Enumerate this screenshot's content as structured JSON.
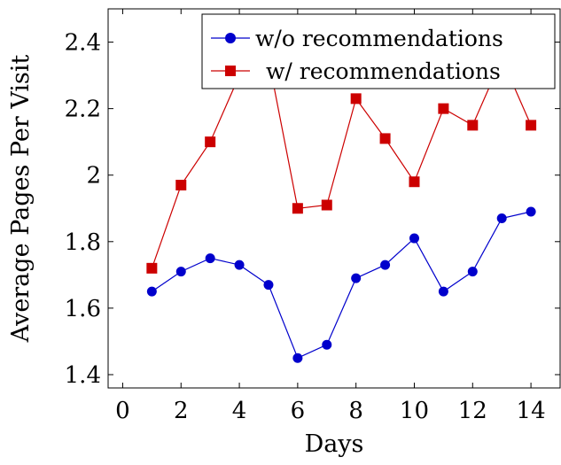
{
  "chart_data": {
    "type": "line",
    "title": "",
    "xlabel": "Days",
    "ylabel": "Average Pages Per Visit",
    "xlim": [
      -0.5,
      15
    ],
    "ylim": [
      1.36,
      2.5
    ],
    "xticks": [
      0,
      2,
      4,
      6,
      8,
      10,
      12,
      14
    ],
    "xtick_labels": [
      "0",
      "2",
      "4",
      "6",
      "8",
      "10",
      "12",
      "14"
    ],
    "yticks": [
      1.4,
      1.6,
      1.8,
      2.0,
      2.2,
      2.4
    ],
    "ytick_labels": [
      "1.4",
      "1.6",
      "1.8",
      "2",
      "2.2",
      "2.4"
    ],
    "grid": false,
    "legend_position": "top-right",
    "x": [
      1,
      2,
      3,
      4,
      5,
      6,
      7,
      8,
      9,
      10,
      11,
      12,
      13,
      14
    ],
    "series": [
      {
        "name": "w/o recommendations",
        "color": "#0000cc",
        "marker": "circle",
        "values": [
          1.65,
          1.71,
          1.75,
          1.73,
          1.67,
          1.45,
          1.49,
          1.69,
          1.73,
          1.81,
          1.65,
          1.71,
          1.87,
          1.89
        ]
      },
      {
        "name": "w/ recommendations",
        "color": "#cc0000",
        "marker": "square",
        "values": [
          1.72,
          1.97,
          2.1,
          2.3,
          2.35,
          1.9,
          1.91,
          2.23,
          2.11,
          1.98,
          2.2,
          2.15,
          2.35,
          2.15
        ]
      }
    ]
  }
}
